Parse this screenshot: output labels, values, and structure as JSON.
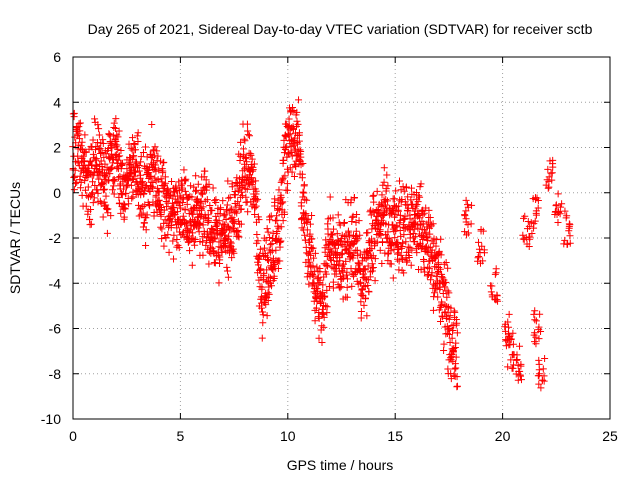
{
  "chart_data": {
    "type": "scatter",
    "title": "Day 265 of 2021, Sidereal Day-to-day VTEC variation (SDTVAR) for receiver sctb",
    "xlabel": "GPS time / hours",
    "ylabel": "SDTVAR / TECUs",
    "xlim": [
      0,
      25
    ],
    "ylim": [
      -10,
      6
    ],
    "xticks": [
      0,
      5,
      10,
      15,
      20,
      25
    ],
    "yticks": [
      -10,
      -8,
      -6,
      -4,
      -2,
      0,
      2,
      4,
      6
    ],
    "grid": true,
    "marker": "+",
    "color": "#ff0000",
    "series": [
      {
        "name": "SDTVAR",
        "trend": [
          [
            0.0,
            1.8
          ],
          [
            0.2,
            2.4
          ],
          [
            0.4,
            1.0
          ],
          [
            0.6,
            0.8
          ],
          [
            0.8,
            0.2
          ],
          [
            1.0,
            1.2
          ],
          [
            1.2,
            1.5
          ],
          [
            1.4,
            0.5
          ],
          [
            1.6,
            0.2
          ],
          [
            1.8,
            1.5
          ],
          [
            2.0,
            1.8
          ],
          [
            2.2,
            0.5
          ],
          [
            2.4,
            -0.3
          ],
          [
            2.6,
            0.8
          ],
          [
            2.8,
            1.5
          ],
          [
            3.0,
            0.8
          ],
          [
            3.3,
            -0.5
          ],
          [
            3.6,
            1.2
          ],
          [
            4.0,
            0.2
          ],
          [
            4.4,
            -0.6
          ],
          [
            4.8,
            -0.8
          ],
          [
            5.2,
            -1.0
          ],
          [
            5.6,
            -1.5
          ],
          [
            6.0,
            -0.6
          ],
          [
            6.4,
            -1.5
          ],
          [
            6.8,
            -2.0
          ],
          [
            7.2,
            -1.8
          ],
          [
            7.6,
            -0.8
          ],
          [
            8.0,
            1.5
          ],
          [
            8.2,
            1.2
          ],
          [
            8.5,
            -0.5
          ],
          [
            8.8,
            -4.5
          ],
          [
            9.2,
            -2.8
          ],
          [
            9.6,
            -1.5
          ],
          [
            9.9,
            1.5
          ],
          [
            10.2,
            3.0
          ],
          [
            10.5,
            2.0
          ],
          [
            10.8,
            -1.5
          ],
          [
            11.2,
            -3.5
          ],
          [
            11.6,
            -5.0
          ],
          [
            12.0,
            -1.8
          ],
          [
            12.5,
            -3.0
          ],
          [
            13.0,
            -2.0
          ],
          [
            13.5,
            -4.0
          ],
          [
            14.0,
            -2.0
          ],
          [
            14.5,
            -1.0
          ],
          [
            15.0,
            -1.5
          ],
          [
            15.5,
            -1.8
          ],
          [
            16.0,
            -1.2
          ],
          [
            16.5,
            -2.5
          ],
          [
            17.0,
            -3.5
          ],
          [
            17.5,
            -6.0
          ],
          [
            17.9,
            -7.5
          ]
        ],
        "clusters": [
          [
            18.4,
            -1.1
          ],
          [
            19.0,
            -2.4
          ],
          [
            19.6,
            -4.0
          ],
          [
            20.2,
            -6.0
          ],
          [
            20.4,
            -7.0
          ],
          [
            20.8,
            -7.5
          ],
          [
            21.1,
            -1.8
          ],
          [
            21.5,
            -1.0
          ],
          [
            21.6,
            -6.0
          ],
          [
            21.8,
            -8.0
          ],
          [
            22.2,
            0.8
          ],
          [
            22.6,
            -0.8
          ],
          [
            23.0,
            -1.5
          ]
        ]
      }
    ]
  }
}
